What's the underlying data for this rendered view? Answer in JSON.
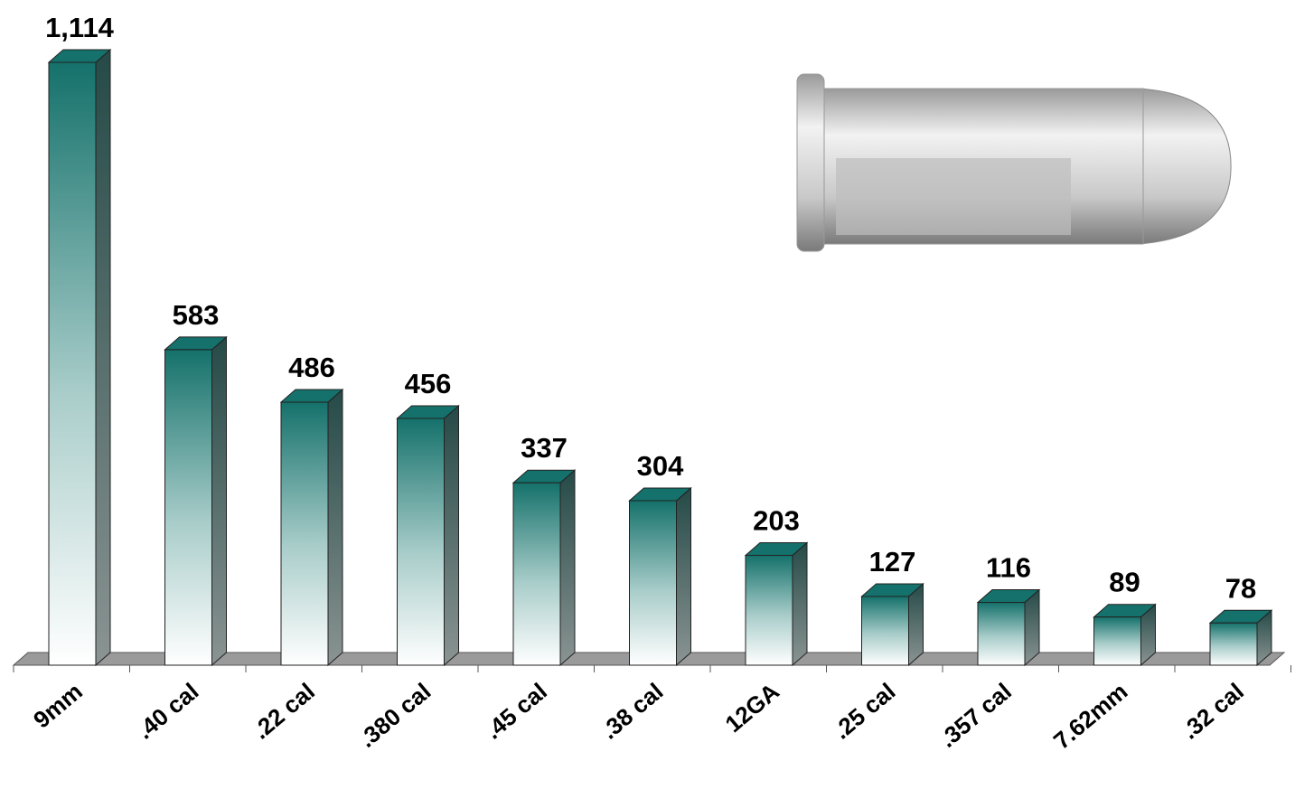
{
  "chart_data": {
    "type": "bar3d",
    "categories": [
      "9mm",
      ".40 cal",
      ".22 cal",
      ".380 cal",
      ".45 cal",
      ".38 cal",
      "12GA",
      ".25 cal",
      ".357 cal",
      "7.62mm",
      ".32 cal"
    ],
    "values": [
      1114,
      583,
      486,
      456,
      337,
      304,
      203,
      127,
      116,
      89,
      78
    ],
    "value_labels": [
      "1,114",
      "583",
      "486",
      "456",
      "337",
      "304",
      "203",
      "127",
      "116",
      "89",
      "78"
    ],
    "color": "#15716b"
  }
}
